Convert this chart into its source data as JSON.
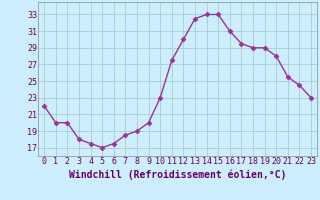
{
  "x": [
    0,
    1,
    2,
    3,
    4,
    5,
    6,
    7,
    8,
    9,
    10,
    11,
    12,
    13,
    14,
    15,
    16,
    17,
    18,
    19,
    20,
    21,
    22,
    23
  ],
  "y": [
    22,
    20,
    20,
    18,
    17.5,
    17,
    17.5,
    18.5,
    19,
    20,
    23,
    27.5,
    30,
    32.5,
    33,
    33,
    31,
    29.5,
    29,
    29,
    28,
    25.5,
    24.5,
    23
  ],
  "line_color": "#993399",
  "marker": "D",
  "marker_size": 2.5,
  "bg_color": "#cceeff",
  "grid_color": "#aacccc",
  "xlabel": "Windchill (Refroidissement éolien,°C)",
  "xlabel_fontsize": 7,
  "yticks": [
    17,
    19,
    21,
    23,
    25,
    27,
    29,
    31,
    33
  ],
  "xtick_labels": [
    "0",
    "1",
    "2",
    "3",
    "4",
    "5",
    "6",
    "7",
    "8",
    "9",
    "10",
    "11",
    "12",
    "13",
    "14",
    "15",
    "16",
    "17",
    "18",
    "19",
    "20",
    "21",
    "22",
    "23"
  ],
  "ylim": [
    16,
    34.5
  ],
  "xlim": [
    -0.5,
    23.5
  ],
  "tick_fontsize": 6,
  "line_width": 1.0
}
